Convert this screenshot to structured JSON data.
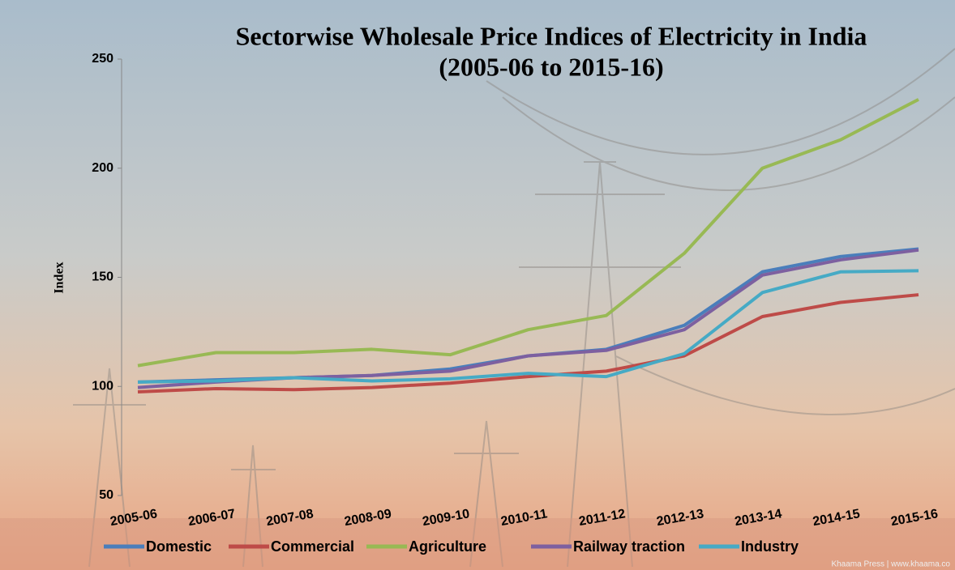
{
  "chart_data": {
    "type": "line",
    "title": "Sectorwise Wholesale Price Indices of Electricity in India",
    "subtitle": "(2005-06 to 2015-16)",
    "y_label": "Index",
    "watermark": "Khaama Press | www.khaama.co",
    "categories": [
      "2005-06",
      "2006-07",
      "2007-08",
      "2008-09",
      "2009-10",
      "2010-11",
      "2011-12",
      "2012-13",
      "2013-14",
      "2014-15",
      "2015-16"
    ],
    "series": [
      {
        "name": "Domestic",
        "color": "#4a7ebb",
        "values": [
          102,
          103,
          104,
          105,
          108,
          114,
          117,
          128,
          152.5,
          159.5,
          163
        ]
      },
      {
        "name": "Commercial",
        "color": "#be4b48",
        "values": [
          97.5,
          99,
          98.5,
          99.5,
          101.5,
          104.5,
          107,
          114,
          132,
          138.5,
          142
        ]
      },
      {
        "name": "Agriculture",
        "color": "#98b954",
        "values": [
          109.5,
          115.5,
          115.5,
          117,
          114.5,
          126,
          132.5,
          161,
          200,
          213,
          231.5
        ]
      },
      {
        "name": "Railway traction",
        "color": "#7d60a0",
        "values": [
          99.5,
          102,
          104,
          105,
          107,
          114,
          116.5,
          126,
          151,
          158,
          162.5
        ]
      },
      {
        "name": "Industry",
        "color": "#46aac5",
        "values": [
          102,
          102.5,
          104,
          102.5,
          103.5,
          106,
          104.5,
          115,
          143,
          152.5,
          153
        ]
      }
    ],
    "ylim": [
      50,
      250
    ],
    "yticks": [
      50,
      100,
      150,
      200,
      250
    ],
    "grid": false,
    "legend": "bottom"
  }
}
